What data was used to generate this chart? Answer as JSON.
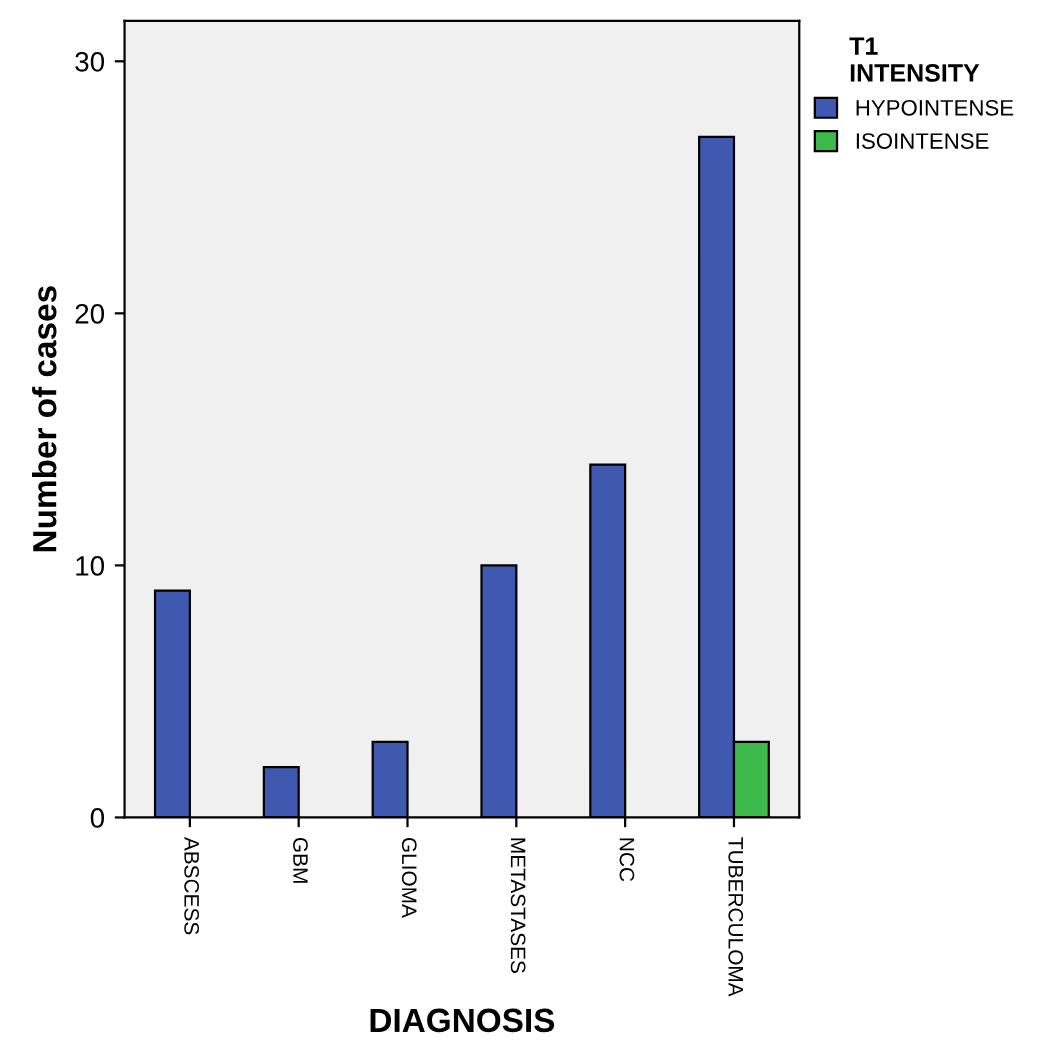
{
  "chart_data": {
    "type": "bar",
    "xlabel": "DIAGNOSIS",
    "ylabel": "Number of cases",
    "legend_title": "T1\nINTENSITY",
    "categories": [
      "ABSCESS",
      "GBM",
      "GLIOMA",
      "METASTASES",
      "NCC",
      "TUBERCULOMA"
    ],
    "series": [
      {
        "name": "HYPOINTENSE",
        "color": "#3f58b0",
        "values": [
          9,
          2,
          3,
          10,
          14,
          27
        ]
      },
      {
        "name": "ISOINTENSE",
        "color": "#3cb94a",
        "values": [
          null,
          null,
          null,
          null,
          null,
          3
        ]
      }
    ],
    "ylim": [
      0,
      31.6
    ],
    "yticks": [
      0,
      10,
      20,
      30
    ],
    "grid": false,
    "legend": "top right"
  }
}
